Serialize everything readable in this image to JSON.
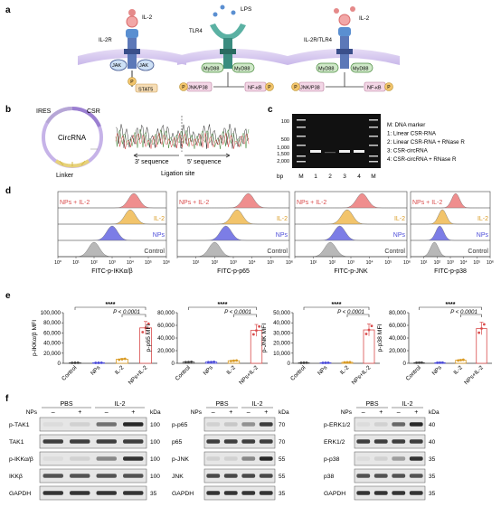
{
  "panel_labels": [
    "a",
    "b",
    "c",
    "d",
    "e",
    "f"
  ],
  "panel_a": {
    "receptor1": {
      "ligand": "IL-2",
      "receptor": "IL-2R",
      "adapters": [
        "JAK",
        "JAK"
      ],
      "effector": "STAT5",
      "phospho": "P"
    },
    "receptor2": {
      "ligand": "LPS",
      "receptor": "TLR4",
      "adapters": [
        "MyD88",
        "MyD88"
      ],
      "effectors": [
        "JNK/P38",
        "NF-κB"
      ],
      "phospho": "P"
    },
    "receptor3": {
      "ligand": "IL-2",
      "receptor": "IL-2R/TLR4",
      "adapters": [
        "MyD88",
        "MyD88"
      ],
      "effectors": [
        "JNK/P38",
        "NF-κB"
      ],
      "phospho": "P"
    }
  },
  "panel_b": {
    "circle_labels": {
      "ires": "IRES",
      "csr": "CSR",
      "center": "CircRNA",
      "linker": "Linker"
    },
    "seq_labels": {
      "left": "3' sequence",
      "right": "5' sequence",
      "site": "Ligation site"
    }
  },
  "panel_c": {
    "ladder_labels": [
      "100",
      "500",
      "1,000",
      "1,500",
      "2,000"
    ],
    "bp_label": "bp",
    "lanes": [
      "M",
      "1",
      "2",
      "3",
      "4",
      "M"
    ],
    "legend": [
      "M: DNA marker",
      "1: Linear CSR-RNA",
      "2: Linear CSR-RNA + RNase R",
      "3: CSR-circRNA",
      "4: CSR-circRNA + RNase R"
    ]
  },
  "panel_d": {
    "groups": [
      "NPs + IL-2",
      "IL-2",
      "NPs",
      "Control"
    ],
    "group_colors": [
      "#ef8e8e",
      "#f2c46b",
      "#7c7de6",
      "#b8b8b8"
    ],
    "label_colors": [
      "#d94c4c",
      "#d99a22",
      "#4c4cd9",
      "#333333"
    ],
    "tick_labels": [
      "10⁰",
      "10¹",
      "10²",
      "10³",
      "10⁴",
      "10⁵",
      "10⁶"
    ],
    "xlabels": [
      "FITC-p-IKKα/β",
      "FITC-p-p65",
      "FITC-p-JNK",
      "FITC-p-p38"
    ]
  },
  "chart_data": [
    {
      "type": "bar",
      "ylabel": "p-IKKα/β MFI",
      "categories": [
        "Control",
        "NPs",
        "IL-2",
        "NPs+IL-2"
      ],
      "values": [
        1000,
        1000,
        8000,
        70000
      ],
      "ylim": [
        0,
        100000
      ],
      "yticks": [
        "0",
        "20,000",
        "40,000",
        "60,000",
        "80,000",
        "100,000"
      ],
      "sig": "****",
      "pval": "P < 0.0001"
    },
    {
      "type": "bar",
      "ylabel": "p-p65 MFI",
      "categories": [
        "Control",
        "NPs",
        "IL-2",
        "NPs+IL-2"
      ],
      "values": [
        2000,
        2000,
        4000,
        52000
      ],
      "ylim": [
        0,
        80000
      ],
      "yticks": [
        "0",
        "20,000",
        "40,000",
        "60,000",
        "80,000"
      ],
      "sig": "****",
      "pval": "P < 0.0001"
    },
    {
      "type": "bar",
      "ylabel": "p-JNK MFI",
      "categories": [
        "Control",
        "NPs",
        "IL-2",
        "NPs+IL-2"
      ],
      "values": [
        500,
        500,
        1000,
        33000
      ],
      "ylim": [
        0,
        50000
      ],
      "yticks": [
        "0",
        "10,000",
        "20,000",
        "30,000",
        "40,000",
        "50,000"
      ],
      "sig": "****",
      "pval": "P < 0.0001"
    },
    {
      "type": "bar",
      "ylabel": "p-p38 MFI",
      "categories": [
        "Control",
        "NPs",
        "IL-2",
        "NPs+IL-2"
      ],
      "values": [
        1000,
        1000,
        5000,
        55000
      ],
      "ylim": [
        0,
        80000
      ],
      "yticks": [
        "0",
        "20,000",
        "40,000",
        "60,000",
        "80,000"
      ],
      "sig": "****",
      "pval": "P < 0.0001"
    }
  ],
  "panel_e_colors": [
    "#444444",
    "#4c4cd9",
    "#d99a22",
    "#d94c4c"
  ],
  "panel_f": {
    "header": {
      "pbs": "PBS",
      "il2": "IL-2",
      "nps": "NPs",
      "signs": [
        "–",
        "+",
        "–",
        "+"
      ],
      "kda": "kDa"
    },
    "blots": [
      {
        "rows": [
          {
            "name": "p-TAK1",
            "mw": "100"
          },
          {
            "name": "TAK1",
            "mw": "100"
          },
          {
            "name": "p-IKKα/β",
            "mw": "100"
          },
          {
            "name": "IKKβ",
            "mw": "100"
          },
          {
            "name": "GAPDH",
            "mw": "35"
          }
        ]
      },
      {
        "rows": [
          {
            "name": "p-p65",
            "mw": "70"
          },
          {
            "name": "p65",
            "mw": "70"
          },
          {
            "name": "p-JNK",
            "mw": "55"
          },
          {
            "name": "JNK",
            "mw": "55"
          },
          {
            "name": "GAPDH",
            "mw": "35"
          }
        ]
      },
      {
        "rows": [
          {
            "name": "p-ERK1/2",
            "mw": "40"
          },
          {
            "name": "ERK1/2",
            "mw": "40"
          },
          {
            "name": "p-p38",
            "mw": "35"
          },
          {
            "name": "p38",
            "mw": "35"
          },
          {
            "name": "GAPDH",
            "mw": "35"
          }
        ]
      }
    ]
  }
}
